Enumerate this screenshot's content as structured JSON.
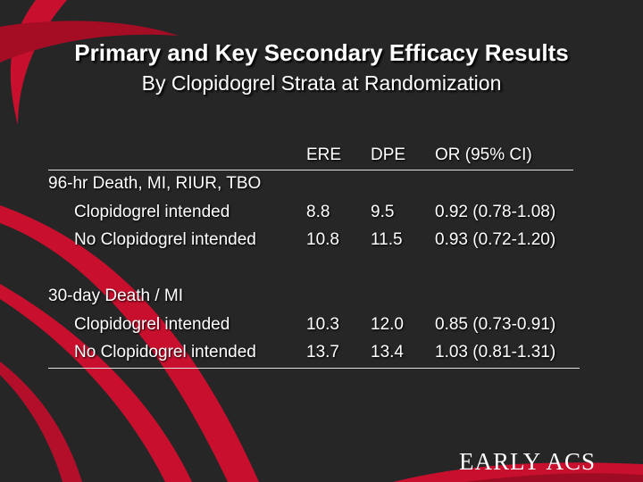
{
  "slide": {
    "title": "Primary and Key Secondary Efficacy Results",
    "subtitle": "By Clopidogrel Strata at Randomization",
    "logo_text": "EARLY ACS",
    "colors": {
      "background": "#262626",
      "swoosh": "#c8102e",
      "text": "#ffffff"
    }
  },
  "table": {
    "headers": {
      "col1": "ERE",
      "col2": "DPE",
      "col3": "OR (95% CI)"
    },
    "sections": [
      {
        "label": "96-hr Death, MI, RIUR, TBO",
        "rows": [
          {
            "label": "Clopidogrel intended",
            "ere": "8.8",
            "dpe": "9.5",
            "or": "0.92 (0.78-1.08)"
          },
          {
            "label": "No Clopidogrel intended",
            "ere": "10.8",
            "dpe": "11.5",
            "or": "0.93 (0.72-1.20)"
          }
        ]
      },
      {
        "label": "30-day Death / MI",
        "rows": [
          {
            "label": "Clopidogrel intended",
            "ere": "10.3",
            "dpe": "12.0",
            "or": "0.85 (0.73-0.91)"
          },
          {
            "label": "No Clopidogrel intended",
            "ere": "13.7",
            "dpe": "13.4",
            "or": "1.03 (0.81-1.31)"
          }
        ]
      }
    ]
  }
}
